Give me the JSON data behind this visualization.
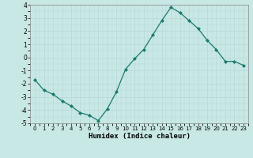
{
  "x": [
    0,
    1,
    2,
    3,
    4,
    5,
    6,
    7,
    8,
    9,
    10,
    11,
    12,
    13,
    14,
    15,
    16,
    17,
    18,
    19,
    20,
    21,
    22,
    23
  ],
  "y": [
    -1.7,
    -2.5,
    -2.8,
    -3.3,
    -3.7,
    -4.2,
    -4.4,
    -4.8,
    -3.9,
    -2.6,
    -0.9,
    -0.1,
    0.6,
    1.7,
    2.8,
    3.8,
    3.4,
    2.8,
    2.2,
    1.3,
    0.6,
    -0.3,
    -0.3,
    -0.6
  ],
  "xlabel": "Humidex (Indice chaleur)",
  "ylim": [
    -5,
    4
  ],
  "xlim": [
    -0.5,
    23.5
  ],
  "yticks": [
    -5,
    -4,
    -3,
    -2,
    -1,
    0,
    1,
    2,
    3,
    4
  ],
  "xticks": [
    0,
    1,
    2,
    3,
    4,
    5,
    6,
    7,
    8,
    9,
    10,
    11,
    12,
    13,
    14,
    15,
    16,
    17,
    18,
    19,
    20,
    21,
    22,
    23
  ],
  "line_color": "#1a7a6e",
  "marker_color": "#1a7a6e",
  "bg_color": "#c8e8e5",
  "grid_color": "#b8d8d5",
  "spine_color": "#888888",
  "xlabel_fontsize": 6.5,
  "tick_fontsize": 5.5,
  "title": ""
}
